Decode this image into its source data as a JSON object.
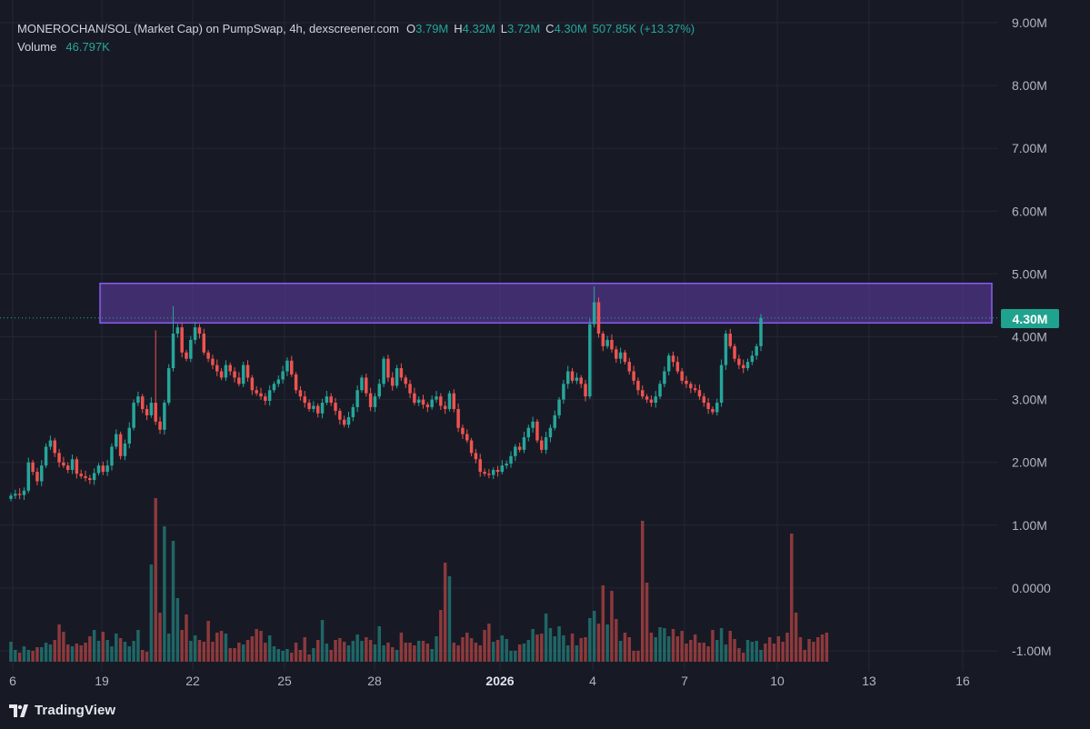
{
  "legend": {
    "title": "MONEROCHAN/SOL (Market Cap) on PumpSwap, 4h, dexscreener.com",
    "o_label": "O",
    "o_value": "3.79M",
    "h_label": "H",
    "h_value": "4.32M",
    "l_label": "L",
    "l_value": "3.72M",
    "c_label": "C",
    "c_value": "4.30M",
    "change": "507.85K (+13.37%)",
    "volume_label": "Volume",
    "volume_value": "46.797K"
  },
  "price_badge": "4.30M",
  "branding": "TradingView",
  "colors": {
    "background": "#171a25",
    "up": "#26a69a",
    "down": "#ef5350",
    "zone": "#6a3fb5",
    "badge": "#1fa38e"
  },
  "chart_data": {
    "type": "candlestick",
    "y_axis_ticks": [
      "9.00M",
      "8.00M",
      "7.00M",
      "6.00M",
      "5.00M",
      "4.00M",
      "3.00M",
      "2.00M",
      "1.00M",
      "0.0000",
      "-1.00M"
    ],
    "y_tick_values": [
      9,
      8,
      7,
      6,
      5,
      4,
      3,
      2,
      1,
      0,
      -1
    ],
    "ylim": [
      -1.2,
      9.3
    ],
    "x_axis_ticks": [
      "6",
      "19",
      "22",
      "25",
      "28",
      "2026",
      "4",
      "7",
      "10",
      "13",
      "16"
    ],
    "current_price": 4.3,
    "zone": {
      "top": 4.85,
      "bottom": 4.22,
      "start_tick": "19",
      "end": "after 16"
    },
    "series_close": [
      1.47,
      1.5,
      1.48,
      1.55,
      2.0,
      1.85,
      1.7,
      1.95,
      2.25,
      2.35,
      2.15,
      2.0,
      1.95,
      1.88,
      2.05,
      1.82,
      1.78,
      1.75,
      1.72,
      1.83,
      1.95,
      1.85,
      1.95,
      2.25,
      2.45,
      2.1,
      2.3,
      2.55,
      2.95,
      3.05,
      2.85,
      2.75,
      2.95,
      2.65,
      2.52,
      2.95,
      3.5,
      4.05,
      4.15,
      3.75,
      3.65,
      3.95,
      4.15,
      4.05,
      3.75,
      3.65,
      3.55,
      3.45,
      3.35,
      3.55,
      3.45,
      3.35,
      3.25,
      3.55,
      3.35,
      3.15,
      3.1,
      3.05,
      2.98,
      3.15,
      3.25,
      3.32,
      3.45,
      3.62,
      3.4,
      3.15,
      3.05,
      2.95,
      2.85,
      2.9,
      2.78,
      2.95,
      3.05,
      2.95,
      2.82,
      2.68,
      2.6,
      2.72,
      2.88,
      3.15,
      3.35,
      3.1,
      2.88,
      3.05,
      3.25,
      3.65,
      3.35,
      3.22,
      3.5,
      3.35,
      3.25,
      3.1,
      2.95,
      3.0,
      2.92,
      2.88,
      3.0,
      3.05,
      2.9,
      2.85,
      3.1,
      2.85,
      2.55,
      2.45,
      2.35,
      2.15,
      2.05,
      1.85,
      1.82,
      1.8,
      1.88,
      1.85,
      1.95,
      1.98,
      2.1,
      2.25,
      2.2,
      2.4,
      2.55,
      2.65,
      2.35,
      2.2,
      2.4,
      2.55,
      2.75,
      3.0,
      3.25,
      3.45,
      3.3,
      3.35,
      3.25,
      3.05,
      4.2,
      4.55,
      4.05,
      3.85,
      3.95,
      3.8,
      3.65,
      3.75,
      3.6,
      3.45,
      3.3,
      3.15,
      3.05,
      3.0,
      2.95,
      3.05,
      3.25,
      3.45,
      3.7,
      3.6,
      3.45,
      3.3,
      3.25,
      3.18,
      3.15,
      3.05,
      2.95,
      2.85,
      2.8,
      2.95,
      3.55,
      4.05,
      3.85,
      3.65,
      3.55,
      3.5,
      3.6,
      3.7,
      3.85,
      4.3
    ],
    "series_volume": [
      0.22,
      0.13,
      0.1,
      0.17,
      0.13,
      0.12,
      0.16,
      0.16,
      0.21,
      0.19,
      0.24,
      0.41,
      0.33,
      0.19,
      0.17,
      0.2,
      0.18,
      0.21,
      0.28,
      0.35,
      0.23,
      0.33,
      0.24,
      0.17,
      0.31,
      0.26,
      0.22,
      0.17,
      0.23,
      0.35,
      0.13,
      0.11,
      1.07,
      1.8,
      0.54,
      1.49,
      0.31,
      1.33,
      0.7,
      0.35,
      0.52,
      0.23,
      0.29,
      0.24,
      0.22,
      0.45,
      0.22,
      0.32,
      0.34,
      0.31,
      0.15,
      0.15,
      0.21,
      0.19,
      0.24,
      0.28,
      0.36,
      0.34,
      0.21,
      0.29,
      0.17,
      0.14,
      0.12,
      0.14,
      0.1,
      0.21,
      0.13,
      0.27,
      0.08,
      0.15,
      0.24,
      0.46,
      0.2,
      0.13,
      0.24,
      0.26,
      0.22,
      0.18,
      0.23,
      0.3,
      0.23,
      0.27,
      0.24,
      0.19,
      0.39,
      0.18,
      0.21,
      0.16,
      0.13,
      0.32,
      0.21,
      0.21,
      0.18,
      0.23,
      0.23,
      0.2,
      0.14,
      0.28,
      0.57,
      1.09,
      0.94,
      0.21,
      0.18,
      0.27,
      0.32,
      0.26,
      0.21,
      0.18,
      0.35,
      0.42,
      0.22,
      0.24,
      0.29,
      0.25,
      0.12,
      0.12,
      0.19,
      0.2,
      0.24,
      0.36,
      0.3,
      0.31,
      0.53,
      0.37,
      0.28,
      0.39,
      0.29,
      0.18,
      0.31,
      0.18,
      0.26,
      0.27,
      0.48,
      0.56,
      0.42,
      0.84,
      0.41,
      0.78,
      0.47,
      0.23,
      0.32,
      0.27,
      0.12,
      0.12,
      1.55,
      0.87,
      0.32,
      0.27,
      0.38,
      0.37,
      0.28,
      0.36,
      0.28,
      0.34,
      0.2,
      0.24,
      0.3,
      0.21,
      0.21,
      0.17,
      0.35,
      0.24,
      0.37,
      0.19,
      0.34,
      0.25,
      0.15,
      0.1,
      0.24,
      0.22,
      0.23,
      0.13,
      0.2,
      0.27,
      0.2,
      0.28,
      0.22,
      0.32,
      1.41,
      0.54,
      0.27,
      0.13,
      0.25,
      0.22,
      0.27,
      0.3,
      0.32
    ],
    "volume_scale_note": "volume bars drawn in bottom pane as relative heights"
  }
}
